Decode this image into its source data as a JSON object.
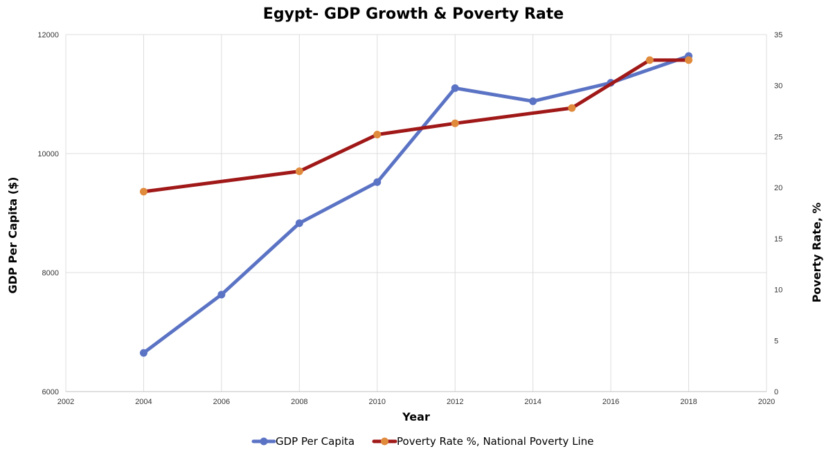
{
  "chart_data": {
    "type": "line",
    "title": "Egypt- GDP Growth & Poverty Rate",
    "xlabel": "Year",
    "ylabel": "GDP Per Capita ($)",
    "y2label": "Poverty Rate, %",
    "xlim": [
      2002,
      2020
    ],
    "ylim": [
      6000,
      12000
    ],
    "y2lim": [
      0,
      35
    ],
    "x_ticks": [
      2002,
      2004,
      2006,
      2008,
      2010,
      2012,
      2014,
      2016,
      2018,
      2020
    ],
    "y_ticks": [
      6000,
      8000,
      10000,
      12000
    ],
    "y2_ticks": [
      0,
      5,
      10,
      15,
      20,
      25,
      30,
      35
    ],
    "grid": true,
    "legend_position": "bottom",
    "series": [
      {
        "name": "GDP Per Capita",
        "axis": "left",
        "color": "#5B73C4",
        "marker_color": "#5B73C4",
        "x": [
          2004,
          2006,
          2008,
          2010,
          2012,
          2014,
          2016,
          2018
        ],
        "y": [
          6650,
          7630,
          8830,
          9520,
          11100,
          10880,
          11190,
          11640
        ]
      },
      {
        "name": "Poverty Rate %, National Poverty Line",
        "axis": "right",
        "color": "#A01818",
        "marker_color": "#E08A3C",
        "x": [
          2004,
          2008,
          2010,
          2012,
          2015,
          2017,
          2018
        ],
        "y": [
          19.6,
          21.6,
          25.2,
          26.3,
          27.8,
          32.5,
          32.5
        ]
      }
    ]
  }
}
